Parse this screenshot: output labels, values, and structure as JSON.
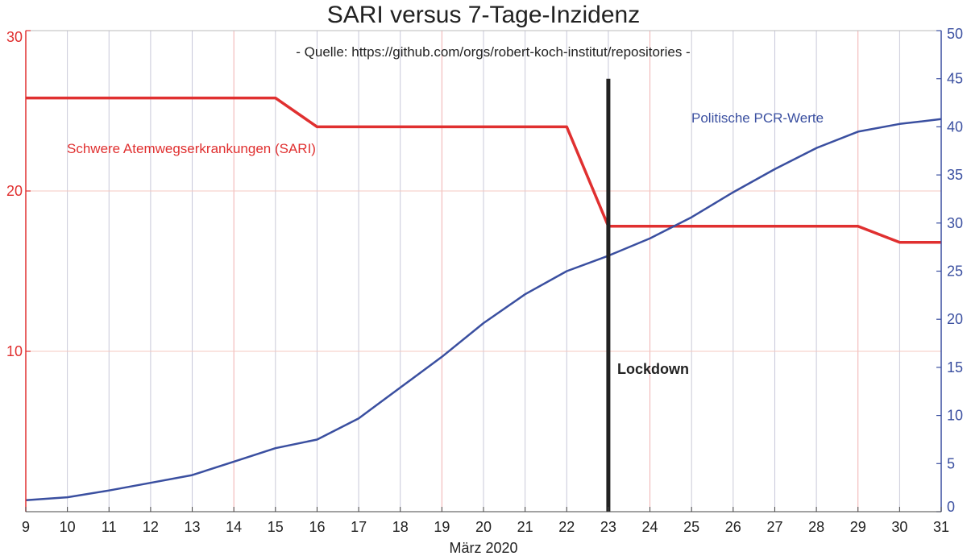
{
  "chart_data": {
    "type": "line",
    "title": "SARI versus 7-Tage-Inzidenz",
    "subtitle": "- Quelle: https://github.com/orgs/robert-koch-institut/repositories -",
    "xlabel": "März 2020",
    "x": [
      9,
      10,
      11,
      12,
      13,
      14,
      15,
      16,
      17,
      18,
      19,
      20,
      21,
      22,
      23,
      24,
      25,
      26,
      27,
      28,
      29,
      30,
      31
    ],
    "xlim": [
      9,
      31
    ],
    "y_left": {
      "ylim": [
        0,
        30
      ],
      "ticks": [
        10,
        20,
        30
      ],
      "color": "#e03030"
    },
    "y_right": {
      "ylim": [
        0,
        50
      ],
      "ticks": [
        0,
        5,
        10,
        15,
        20,
        25,
        30,
        35,
        40,
        45,
        50
      ],
      "color": "#3a4fa0"
    },
    "grid": true,
    "series": [
      {
        "name": "Schwere Atemwegserkrankungen (SARI)",
        "axis": "left",
        "color": "#e03030",
        "points": [
          [
            9,
            25.8
          ],
          [
            15,
            25.8
          ],
          [
            16,
            24
          ],
          [
            22,
            24
          ],
          [
            23,
            17.8
          ],
          [
            29,
            17.8
          ],
          [
            30,
            16.8
          ],
          [
            31,
            16.8
          ]
        ]
      },
      {
        "name": "Politische PCR-Werte",
        "axis": "right",
        "color": "#3a4fa0",
        "points": [
          [
            9,
            1.2
          ],
          [
            10,
            1.5
          ],
          [
            11,
            2.2
          ],
          [
            12,
            3
          ],
          [
            13,
            3.8
          ],
          [
            14,
            5.2
          ],
          [
            15,
            6.6
          ],
          [
            16,
            7.5
          ],
          [
            17,
            9.7
          ],
          [
            18,
            12.9
          ],
          [
            19,
            16.1
          ],
          [
            20,
            19.6
          ],
          [
            21,
            22.6
          ],
          [
            22,
            25
          ],
          [
            23,
            26.6
          ],
          [
            24,
            28.4
          ],
          [
            25,
            30.6
          ],
          [
            26,
            33.2
          ],
          [
            27,
            35.6
          ],
          [
            28,
            37.8
          ],
          [
            29,
            39.5
          ],
          [
            30,
            40.3
          ],
          [
            31,
            40.8
          ]
        ]
      }
    ],
    "annotations": [
      {
        "text": "Lockdown",
        "x": 23,
        "type": "vertical-line",
        "ymax_right": 45,
        "color": "#222222"
      }
    ]
  }
}
